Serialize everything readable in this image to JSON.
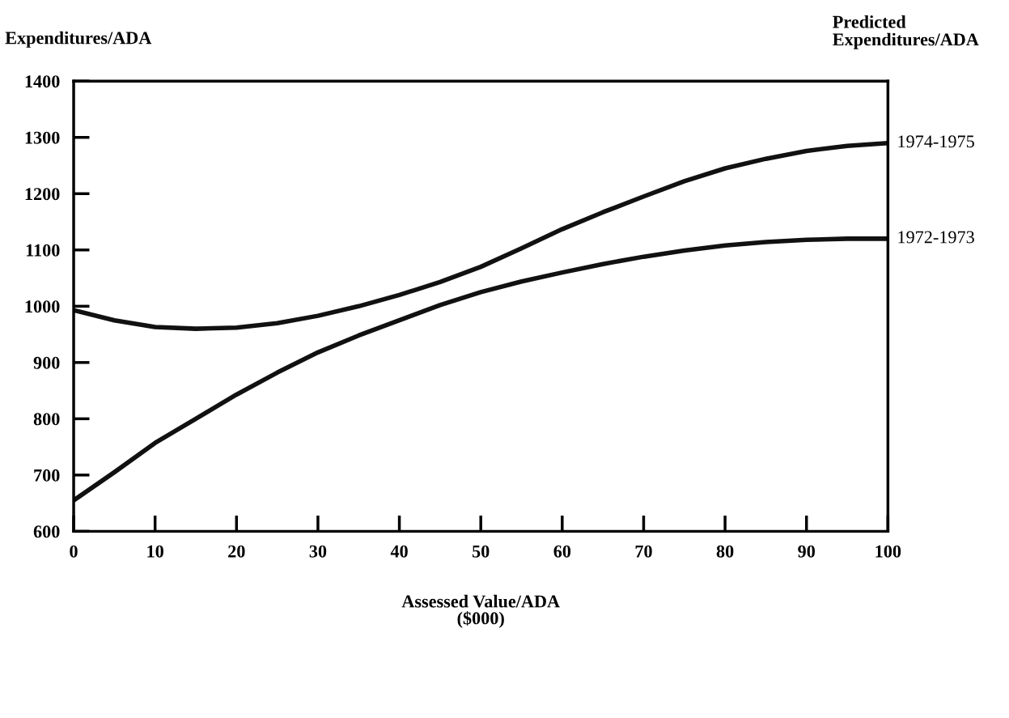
{
  "chart_data": {
    "type": "line",
    "ylabel": "Expenditures/ADA",
    "xlabel": "Assessed Value/ADA\n($000)",
    "annotations": [
      "Predicted\nExpenditures/ADA"
    ],
    "x": [
      0,
      5,
      10,
      15,
      20,
      25,
      30,
      35,
      40,
      45,
      50,
      55,
      60,
      65,
      70,
      75,
      80,
      85,
      90,
      95,
      100
    ],
    "series": [
      {
        "name": "1974-1975",
        "color": "#111111",
        "values": [
          993,
          975,
          963,
          960,
          962,
          970,
          983,
          1000,
          1020,
          1043,
          1070,
          1103,
          1137,
          1167,
          1195,
          1222,
          1245,
          1262,
          1276,
          1285,
          1290
        ]
      },
      {
        "name": "1972-1973",
        "color": "#111111",
        "values": [
          655,
          705,
          757,
          800,
          843,
          882,
          918,
          948,
          975,
          1002,
          1025,
          1044,
          1060,
          1075,
          1088,
          1099,
          1108,
          1114,
          1118,
          1120,
          1120
        ]
      }
    ],
    "xlim": [
      0,
      100
    ],
    "xticks": [
      0,
      10,
      20,
      30,
      40,
      50,
      60,
      70,
      80,
      90,
      100
    ],
    "ylim": [
      600,
      1400
    ],
    "yticks": [
      600,
      700,
      800,
      900,
      1000,
      1100,
      1200,
      1300,
      1400
    ],
    "grid": false,
    "legend": false,
    "marker": "none",
    "line_style": "solid"
  }
}
